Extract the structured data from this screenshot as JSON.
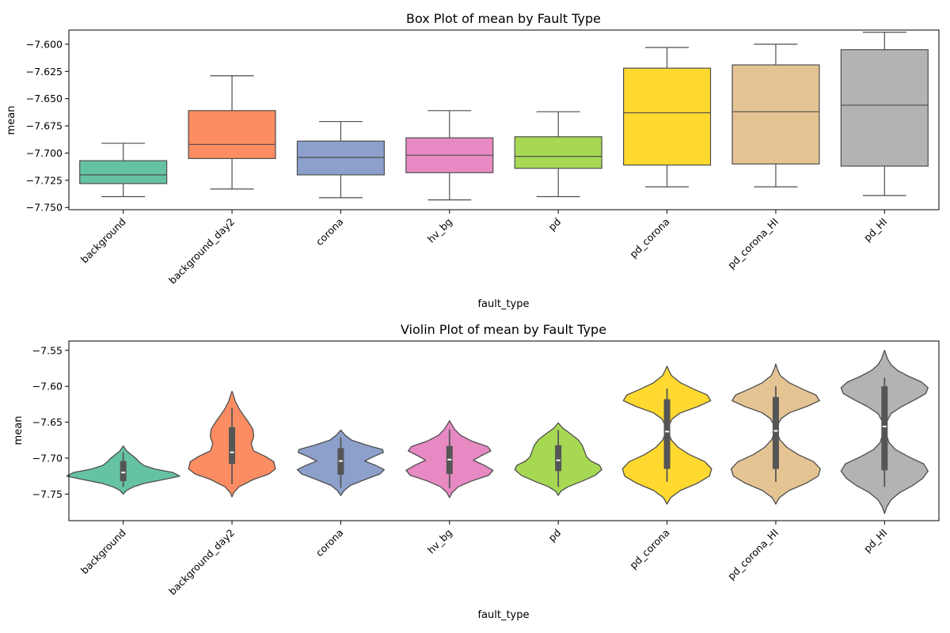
{
  "chart_data": [
    {
      "type": "box",
      "title": "Box Plot of mean by Fault Type",
      "xlabel": "fault_type",
      "ylabel": "mean",
      "categories": [
        "background",
        "background_day2",
        "corona",
        "hv_bg",
        "pd",
        "pd_corona",
        "pd_corona_HI",
        "pd_HI"
      ],
      "ylim": [
        -7.752,
        -7.587
      ],
      "yticks": [
        -7.75,
        -7.725,
        -7.7,
        -7.675,
        -7.65,
        -7.625,
        -7.6
      ],
      "ytick_labels": [
        "−7.750",
        "−7.725",
        "−7.700",
        "−7.675",
        "−7.650",
        "−7.625",
        "−7.600"
      ],
      "colors": [
        "#66c2a5",
        "#fc8d62",
        "#8da0cb",
        "#e78ac3",
        "#a6d854",
        "#ffd92f",
        "#e5c494",
        "#b3b3b3"
      ],
      "boxes": [
        {
          "whisker_low": -7.74,
          "q1": -7.728,
          "median": -7.72,
          "q3": -7.707,
          "whisker_high": -7.691
        },
        {
          "whisker_low": -7.733,
          "q1": -7.705,
          "median": -7.692,
          "q3": -7.661,
          "whisker_high": -7.629
        },
        {
          "whisker_low": -7.741,
          "q1": -7.72,
          "median": -7.704,
          "q3": -7.689,
          "whisker_high": -7.671
        },
        {
          "whisker_low": -7.743,
          "q1": -7.718,
          "median": -7.702,
          "q3": -7.686,
          "whisker_high": -7.661
        },
        {
          "whisker_low": -7.74,
          "q1": -7.714,
          "median": -7.703,
          "q3": -7.685,
          "whisker_high": -7.662
        },
        {
          "whisker_low": -7.731,
          "q1": -7.711,
          "median": -7.663,
          "q3": -7.622,
          "whisker_high": -7.603
        },
        {
          "whisker_low": -7.731,
          "q1": -7.71,
          "median": -7.662,
          "q3": -7.619,
          "whisker_high": -7.6
        },
        {
          "whisker_low": -7.739,
          "q1": -7.712,
          "median": -7.656,
          "q3": -7.605,
          "whisker_high": -7.589
        }
      ]
    },
    {
      "type": "violin",
      "title": "Violin Plot of mean by Fault Type",
      "xlabel": "fault_type",
      "ylabel": "mean",
      "categories": [
        "background",
        "background_day2",
        "corona",
        "hv_bg",
        "pd",
        "pd_corona",
        "pd_corona_HI",
        "pd_HI"
      ],
      "ylim": [
        -7.787,
        -7.537
      ],
      "yticks": [
        -7.75,
        -7.7,
        -7.65,
        -7.6,
        -7.55
      ],
      "ytick_labels": [
        "−7.75",
        "−7.70",
        "−7.65",
        "−7.60",
        "−7.55"
      ],
      "colors": [
        "#66c2a5",
        "#fc8d62",
        "#8da0cb",
        "#e78ac3",
        "#a6d854",
        "#ffd92f",
        "#e5c494",
        "#b3b3b3"
      ],
      "violins": [
        {
          "ymin": -7.75,
          "ymax": -7.683,
          "max_half_width": 0.52,
          "profile": [
            [
              -7.75,
              0.0
            ],
            [
              -7.745,
              0.06
            ],
            [
              -7.74,
              0.18
            ],
            [
              -7.735,
              0.38
            ],
            [
              -7.73,
              0.7
            ],
            [
              -7.725,
              1.0
            ],
            [
              -7.72,
              0.88
            ],
            [
              -7.715,
              0.55
            ],
            [
              -7.71,
              0.36
            ],
            [
              -7.705,
              0.28
            ],
            [
              -7.7,
              0.22
            ],
            [
              -7.695,
              0.14
            ],
            [
              -7.69,
              0.06
            ],
            [
              -7.683,
              0.0
            ]
          ],
          "box": {
            "whisker_low": -7.74,
            "q1": -7.732,
            "median": -7.72,
            "q3": -7.704,
            "whisker_high": -7.692
          }
        },
        {
          "ymin": -7.754,
          "ymax": -7.607,
          "max_half_width": 0.4,
          "profile": [
            [
              -7.754,
              0.0
            ],
            [
              -7.748,
              0.04
            ],
            [
              -7.74,
              0.16
            ],
            [
              -7.73,
              0.48
            ],
            [
              -7.722,
              0.85
            ],
            [
              -7.715,
              1.0
            ],
            [
              -7.705,
              0.96
            ],
            [
              -7.698,
              0.78
            ],
            [
              -7.69,
              0.5
            ],
            [
              -7.68,
              0.44
            ],
            [
              -7.67,
              0.5
            ],
            [
              -7.66,
              0.48
            ],
            [
              -7.65,
              0.38
            ],
            [
              -7.64,
              0.26
            ],
            [
              -7.63,
              0.15
            ],
            [
              -7.62,
              0.07
            ],
            [
              -7.612,
              0.03
            ],
            [
              -7.607,
              0.0
            ]
          ],
          "box": {
            "whisker_low": -7.736,
            "q1": -7.708,
            "median": -7.692,
            "q3": -7.657,
            "whisker_high": -7.63
          }
        },
        {
          "ymin": -7.752,
          "ymax": -7.661,
          "max_half_width": 0.4,
          "profile": [
            [
              -7.752,
              0.0
            ],
            [
              -7.745,
              0.08
            ],
            [
              -7.738,
              0.22
            ],
            [
              -7.73,
              0.55
            ],
            [
              -7.722,
              0.9
            ],
            [
              -7.716,
              1.0
            ],
            [
              -7.71,
              0.8
            ],
            [
              -7.704,
              0.55
            ],
            [
              -7.698,
              0.75
            ],
            [
              -7.692,
              0.98
            ],
            [
              -7.688,
              0.96
            ],
            [
              -7.682,
              0.6
            ],
            [
              -7.675,
              0.25
            ],
            [
              -7.668,
              0.1
            ],
            [
              -7.661,
              0.0
            ]
          ],
          "box": {
            "whisker_low": -7.741,
            "q1": -7.723,
            "median": -7.704,
            "q3": -7.686,
            "whisker_high": -7.671
          }
        },
        {
          "ymin": -7.755,
          "ymax": -7.648,
          "max_half_width": 0.4,
          "profile": [
            [
              -7.755,
              0.0
            ],
            [
              -7.748,
              0.06
            ],
            [
              -7.74,
              0.2
            ],
            [
              -7.732,
              0.5
            ],
            [
              -7.724,
              0.9
            ],
            [
              -7.717,
              1.0
            ],
            [
              -7.71,
              0.8
            ],
            [
              -7.703,
              0.55
            ],
            [
              -7.696,
              0.75
            ],
            [
              -7.69,
              0.95
            ],
            [
              -7.684,
              0.88
            ],
            [
              -7.676,
              0.5
            ],
            [
              -7.668,
              0.25
            ],
            [
              -7.66,
              0.12
            ],
            [
              -7.652,
              0.04
            ],
            [
              -7.648,
              0.0
            ]
          ],
          "box": {
            "whisker_low": -7.742,
            "q1": -7.722,
            "median": -7.702,
            "q3": -7.683,
            "whisker_high": -7.66
          }
        },
        {
          "ymin": -7.752,
          "ymax": -7.651,
          "max_half_width": 0.4,
          "profile": [
            [
              -7.752,
              0.0
            ],
            [
              -7.746,
              0.06
            ],
            [
              -7.74,
              0.22
            ],
            [
              -7.732,
              0.55
            ],
            [
              -7.724,
              0.85
            ],
            [
              -7.716,
              1.0
            ],
            [
              -7.71,
              0.95
            ],
            [
              -7.704,
              0.75
            ],
            [
              -7.698,
              0.65
            ],
            [
              -7.69,
              0.6
            ],
            [
              -7.682,
              0.55
            ],
            [
              -7.674,
              0.45
            ],
            [
              -7.666,
              0.28
            ],
            [
              -7.658,
              0.1
            ],
            [
              -7.651,
              0.0
            ]
          ],
          "box": {
            "whisker_low": -7.74,
            "q1": -7.718,
            "median": -7.703,
            "q3": -7.682,
            "whisker_high": -7.661
          }
        },
        {
          "ymin": -7.764,
          "ymax": -7.572,
          "max_half_width": 0.41,
          "profile": [
            [
              -7.764,
              0.0
            ],
            [
              -7.755,
              0.08
            ],
            [
              -7.745,
              0.3
            ],
            [
              -7.735,
              0.68
            ],
            [
              -7.725,
              0.95
            ],
            [
              -7.715,
              1.0
            ],
            [
              -7.705,
              0.85
            ],
            [
              -7.695,
              0.5
            ],
            [
              -7.685,
              0.25
            ],
            [
              -7.675,
              0.1
            ],
            [
              -7.668,
              0.05
            ],
            [
              -7.66,
              0.04
            ],
            [
              -7.652,
              0.06
            ],
            [
              -7.645,
              0.12
            ],
            [
              -7.637,
              0.3
            ],
            [
              -7.628,
              0.7
            ],
            [
              -7.62,
              0.98
            ],
            [
              -7.612,
              0.9
            ],
            [
              -7.604,
              0.6
            ],
            [
              -7.595,
              0.3
            ],
            [
              -7.585,
              0.1
            ],
            [
              -7.578,
              0.04
            ],
            [
              -7.572,
              0.0
            ]
          ],
          "box": {
            "whisker_low": -7.733,
            "q1": -7.715,
            "median": -7.663,
            "q3": -7.618,
            "whisker_high": -7.603
          }
        },
        {
          "ymin": -7.764,
          "ymax": -7.569,
          "max_half_width": 0.41,
          "profile": [
            [
              -7.764,
              0.0
            ],
            [
              -7.755,
              0.08
            ],
            [
              -7.745,
              0.3
            ],
            [
              -7.735,
              0.68
            ],
            [
              -7.725,
              0.95
            ],
            [
              -7.715,
              1.0
            ],
            [
              -7.705,
              0.85
            ],
            [
              -7.695,
              0.5
            ],
            [
              -7.685,
              0.25
            ],
            [
              -7.675,
              0.1
            ],
            [
              -7.668,
              0.05
            ],
            [
              -7.66,
              0.04
            ],
            [
              -7.652,
              0.06
            ],
            [
              -7.645,
              0.12
            ],
            [
              -7.637,
              0.3
            ],
            [
              -7.628,
              0.7
            ],
            [
              -7.62,
              0.98
            ],
            [
              -7.612,
              0.9
            ],
            [
              -7.604,
              0.6
            ],
            [
              -7.595,
              0.3
            ],
            [
              -7.585,
              0.1
            ],
            [
              -7.577,
              0.04
            ],
            [
              -7.569,
              0.0
            ]
          ],
          "box": {
            "whisker_low": -7.733,
            "q1": -7.715,
            "median": -7.662,
            "q3": -7.615,
            "whisker_high": -7.6
          }
        },
        {
          "ymin": -7.777,
          "ymax": -7.55,
          "max_half_width": 0.4,
          "profile": [
            [
              -7.777,
              0.0
            ],
            [
              -7.768,
              0.05
            ],
            [
              -7.758,
              0.15
            ],
            [
              -7.748,
              0.35
            ],
            [
              -7.738,
              0.65
            ],
            [
              -7.728,
              0.88
            ],
            [
              -7.718,
              1.0
            ],
            [
              -7.708,
              0.9
            ],
            [
              -7.698,
              0.55
            ],
            [
              -7.688,
              0.25
            ],
            [
              -7.678,
              0.1
            ],
            [
              -7.668,
              0.05
            ],
            [
              -7.658,
              0.04
            ],
            [
              -7.648,
              0.06
            ],
            [
              -7.638,
              0.15
            ],
            [
              -7.628,
              0.4
            ],
            [
              -7.618,
              0.72
            ],
            [
              -7.61,
              0.95
            ],
            [
              -7.602,
              1.0
            ],
            [
              -7.594,
              0.85
            ],
            [
              -7.586,
              0.55
            ],
            [
              -7.578,
              0.3
            ],
            [
              -7.57,
              0.15
            ],
            [
              -7.562,
              0.07
            ],
            [
              -7.555,
              0.03
            ],
            [
              -7.55,
              0.0
            ]
          ],
          "box": {
            "whisker_low": -7.74,
            "q1": -7.717,
            "median": -7.656,
            "q3": -7.6,
            "whisker_high": -7.588
          }
        }
      ]
    }
  ]
}
